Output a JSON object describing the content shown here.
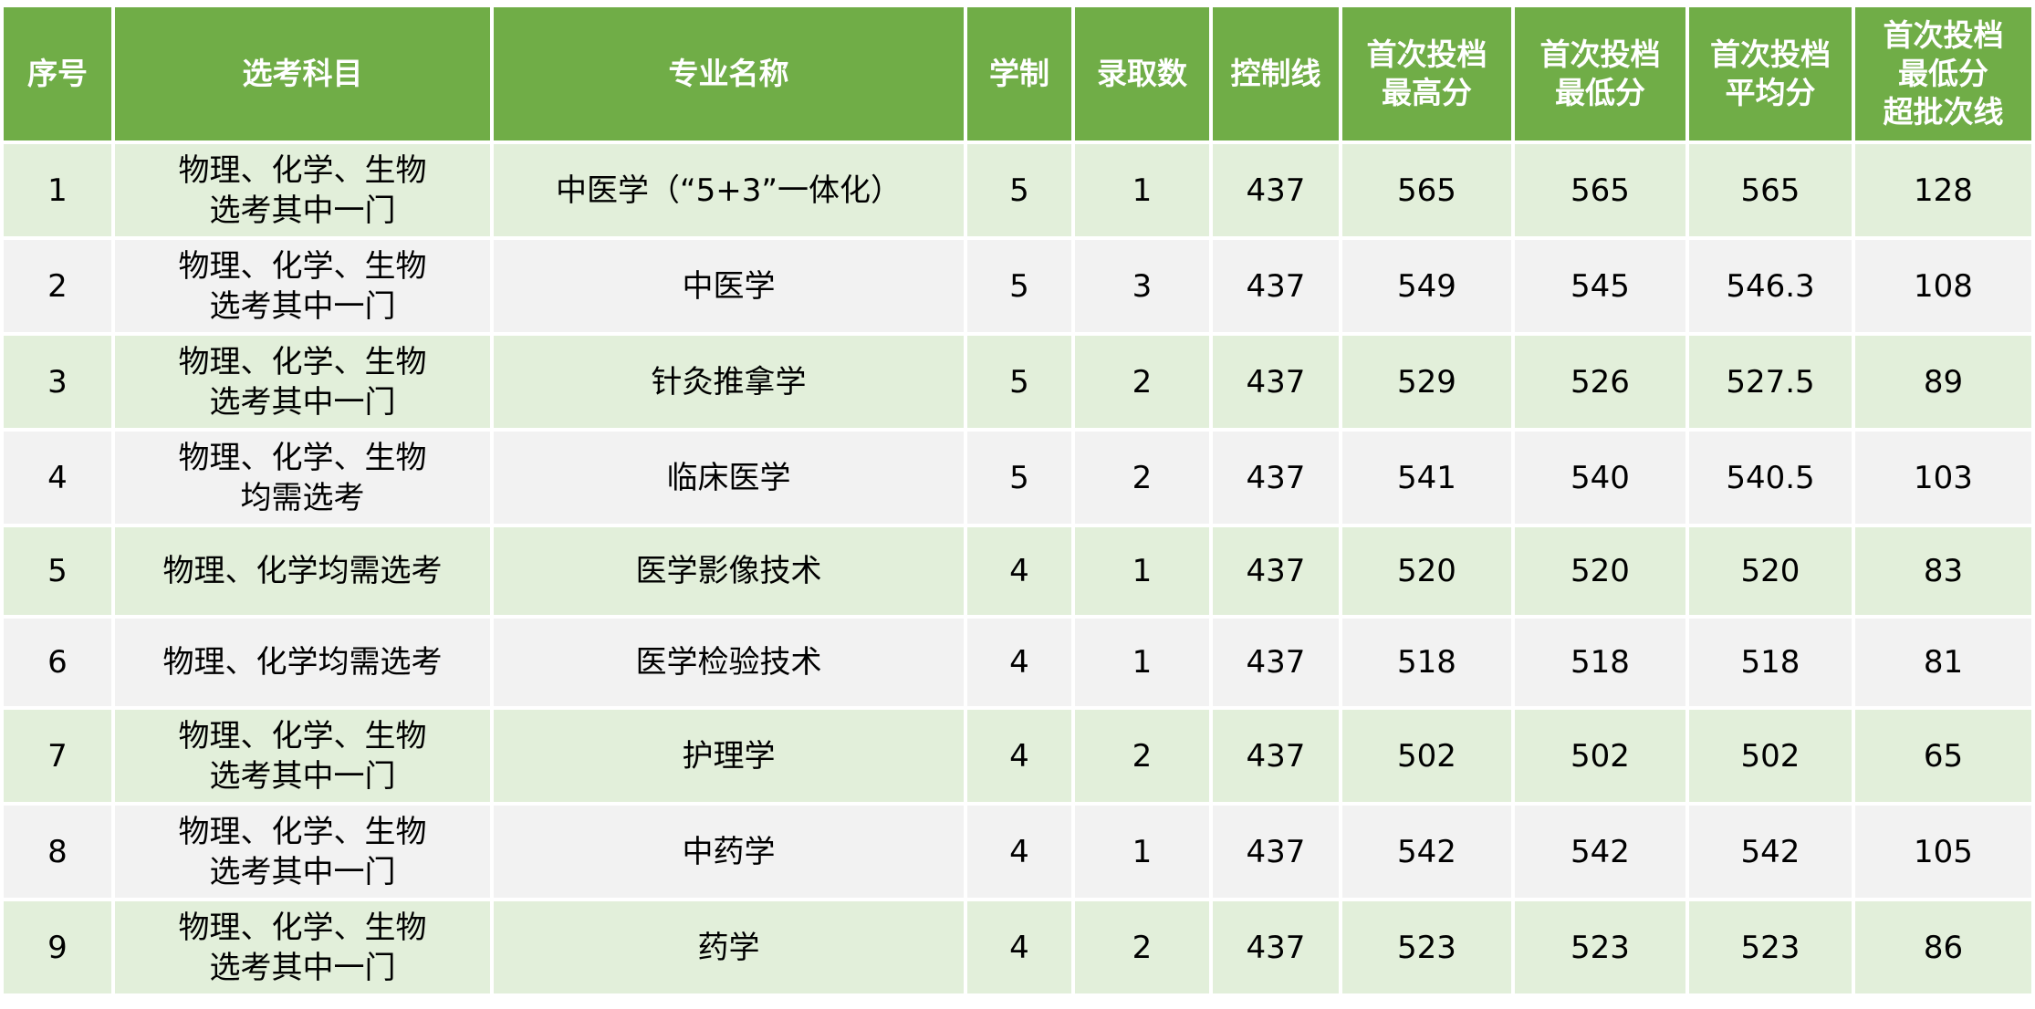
{
  "colors": {
    "header": "#70AD47",
    "row_odd": "#E2EFDA",
    "row_even": "#F2F2F2"
  },
  "headers": [
    [
      "序号"
    ],
    [
      "选考科目"
    ],
    [
      "专业名称"
    ],
    [
      "学制"
    ],
    [
      "录取数"
    ],
    [
      "控制线"
    ],
    [
      "首次投档",
      "最高分"
    ],
    [
      "首次投档",
      "最低分"
    ],
    [
      "首次投档",
      "平均分"
    ],
    [
      "首次投档",
      "最低分",
      "超批次线"
    ]
  ],
  "rows": [
    {
      "no": "1",
      "subjects": [
        "物理、化学、生物",
        "选考其中一门"
      ],
      "major": "中医学（“5+3”一体化）",
      "years": "5",
      "admitted": "1",
      "control": "437",
      "max": "565",
      "min": "565",
      "avg": "565",
      "over": "128"
    },
    {
      "no": "2",
      "subjects": [
        "物理、化学、生物",
        "选考其中一门"
      ],
      "major": "中医学",
      "years": "5",
      "admitted": "3",
      "control": "437",
      "max": "549",
      "min": "545",
      "avg": "546.3",
      "over": "108"
    },
    {
      "no": "3",
      "subjects": [
        "物理、化学、生物",
        "选考其中一门"
      ],
      "major": "针灸推拿学",
      "years": "5",
      "admitted": "2",
      "control": "437",
      "max": "529",
      "min": "526",
      "avg": "527.5",
      "over": "89"
    },
    {
      "no": "4",
      "subjects": [
        "物理、化学、生物",
        "均需选考"
      ],
      "major": "临床医学",
      "years": "5",
      "admitted": "2",
      "control": "437",
      "max": "541",
      "min": "540",
      "avg": "540.5",
      "over": "103"
    },
    {
      "no": "5",
      "subjects": [
        "物理、化学均需选考"
      ],
      "major": "医学影像技术",
      "years": "4",
      "admitted": "1",
      "control": "437",
      "max": "520",
      "min": "520",
      "avg": "520",
      "over": "83"
    },
    {
      "no": "6",
      "subjects": [
        "物理、化学均需选考"
      ],
      "major": "医学检验技术",
      "years": "4",
      "admitted": "1",
      "control": "437",
      "max": "518",
      "min": "518",
      "avg": "518",
      "over": "81"
    },
    {
      "no": "7",
      "subjects": [
        "物理、化学、生物",
        "选考其中一门"
      ],
      "major": "护理学",
      "years": "4",
      "admitted": "2",
      "control": "437",
      "max": "502",
      "min": "502",
      "avg": "502",
      "over": "65"
    },
    {
      "no": "8",
      "subjects": [
        "物理、化学、生物",
        "选考其中一门"
      ],
      "major": "中药学",
      "years": "4",
      "admitted": "1",
      "control": "437",
      "max": "542",
      "min": "542",
      "avg": "542",
      "over": "105"
    },
    {
      "no": "9",
      "subjects": [
        "物理、化学、生物",
        "选考其中一门"
      ],
      "major": "药学",
      "years": "4",
      "admitted": "2",
      "control": "437",
      "max": "523",
      "min": "523",
      "avg": "523",
      "over": "86"
    }
  ]
}
